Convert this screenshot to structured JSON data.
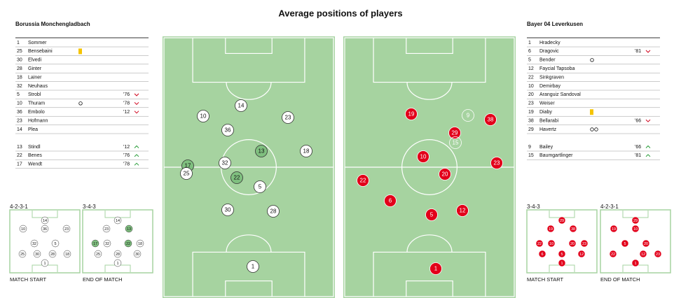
{
  "title": "Average positions of players",
  "home": {
    "name": "Borussia Monchengladbach",
    "starters": [
      {
        "number": 1,
        "name": "Sommer"
      },
      {
        "number": 25,
        "name": "Bensebaini",
        "card": "yellow"
      },
      {
        "number": 30,
        "name": "Elvedi"
      },
      {
        "number": 28,
        "name": "Ginter"
      },
      {
        "number": 18,
        "name": "Lainer"
      },
      {
        "number": 32,
        "name": "Neuhaus"
      },
      {
        "number": 5,
        "name": "Strobl",
        "minute": "'76"
      },
      {
        "number": 10,
        "name": "Thuram",
        "goals": 1,
        "minute": "'78"
      },
      {
        "number": 36,
        "name": "Embolo",
        "minute": "'12"
      },
      {
        "number": 23,
        "name": "Hofmann"
      },
      {
        "number": 14,
        "name": "Plea"
      }
    ],
    "subs": [
      {
        "number": 13,
        "name": "Stindl",
        "minute": "'12"
      },
      {
        "number": 22,
        "name": "Benes",
        "minute": "'76"
      },
      {
        "number": 17,
        "name": "Wendt",
        "minute": "'78"
      }
    ],
    "pitch": [
      14,
      10,
      23,
      36,
      13,
      18,
      17,
      32,
      25,
      22,
      5,
      30,
      28,
      1
    ]
  },
  "away": {
    "name": "Bayer 04 Leverkusen",
    "starters": [
      {
        "number": 1,
        "name": "Hradecky"
      },
      {
        "number": 6,
        "name": "Dragovic",
        "minute": "'81"
      },
      {
        "number": 5,
        "name": "Bender",
        "goals": 1
      },
      {
        "number": 12,
        "name": "Faycial Tapsoba"
      },
      {
        "number": 22,
        "name": "Sinkgraven"
      },
      {
        "number": 10,
        "name": "Demirbay"
      },
      {
        "number": 20,
        "name": "Aranguiz Sandoval"
      },
      {
        "number": 23,
        "name": "Weiser"
      },
      {
        "number": 19,
        "name": "Diaby",
        "card": "yellow"
      },
      {
        "number": 38,
        "name": "Bellarabi",
        "minute": "'66"
      },
      {
        "number": 29,
        "name": "Havertz",
        "goals": 2
      }
    ],
    "subs": [
      {
        "number": 9,
        "name": "Bailey",
        "minute": "'66"
      },
      {
        "number": 15,
        "name": "Baumgartlinger",
        "minute": "'81"
      }
    ],
    "pitch": [
      19,
      9,
      38,
      29,
      15,
      10,
      23,
      20,
      22,
      6,
      5,
      12,
      1
    ]
  },
  "formations": [
    {
      "team": "home",
      "label": "4-2-3-1",
      "caption": "MATCH START",
      "players": [
        14,
        10,
        36,
        23,
        32,
        5,
        25,
        30,
        28,
        18,
        1
      ]
    },
    {
      "team": "home",
      "label": "3-4-3",
      "caption": "END OF MATCH",
      "players": [
        14,
        23,
        13,
        17,
        32,
        22,
        18,
        25,
        28,
        30,
        1
      ]
    },
    {
      "team": "away",
      "label": "3-4-3",
      "caption": "MATCH START",
      "players": [
        29,
        19,
        38,
        22,
        10,
        20,
        23,
        6,
        5,
        12,
        1
      ]
    },
    {
      "team": "away",
      "label": "4-2-3-1",
      "caption": "END OF MATCH",
      "players": [
        29,
        19,
        10,
        9,
        5,
        20,
        22,
        15,
        12,
        23,
        1
      ]
    }
  ]
}
